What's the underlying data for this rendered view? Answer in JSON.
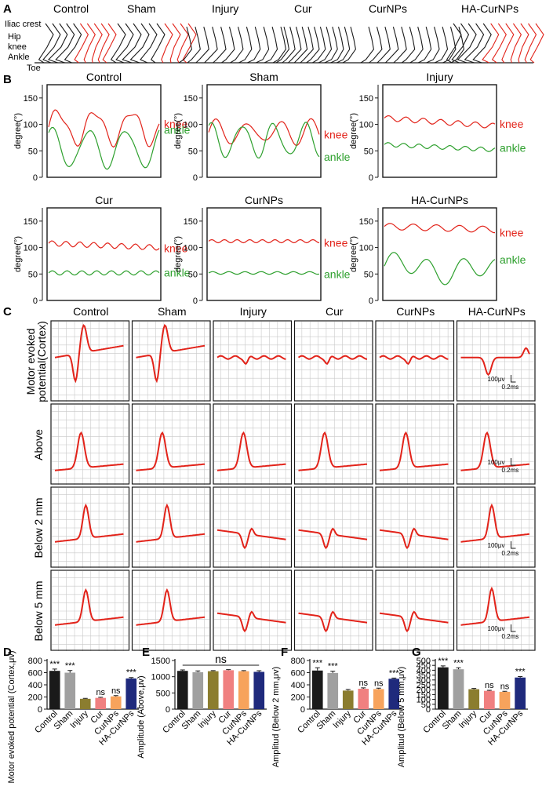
{
  "colors": {
    "red": "#e2231a",
    "green": "#2ea02e",
    "black": "#1a1a1a",
    "gray": "#a0a0a0",
    "olive": "#8b7d2f",
    "pink": "#f08080",
    "orange": "#f7a35c",
    "navy": "#1f2a7c"
  },
  "panel_labels": {
    "a": "A",
    "b": "B",
    "c": "C",
    "d": "D",
    "e": "E",
    "f": "F",
    "g": "G"
  },
  "groups": [
    "Control",
    "Sham",
    "Injury",
    "Cur",
    "CurNPs",
    "HA-CurNPs"
  ],
  "panel_a": {
    "joint_labels": [
      "Iliac crest",
      "Hip",
      "knee",
      "Ankle",
      "Toe"
    ]
  },
  "panel_b": {
    "ylabel": "degree(°)",
    "yticks": [
      "0",
      "50",
      "100",
      "150"
    ],
    "series_names": {
      "knee": "knee",
      "ankle": "ankle"
    }
  },
  "panel_c": {
    "row_labels": [
      "Motor evoked potential(Cortex)",
      "Above",
      "Below 2 mm",
      "Below 5 mm"
    ],
    "scale_v": "100μv",
    "scale_t": "0.2ms"
  },
  "chart_data": [
    {
      "type": "bar",
      "id": "D",
      "title": "",
      "ylabel": "Motor evoked potential (Cortex,μv)",
      "categories": [
        "Control",
        "Sham",
        "Injury",
        "Cur",
        "CurNPs",
        "HA-CurNPs"
      ],
      "values": [
        630,
        600,
        170,
        185,
        210,
        505
      ],
      "errors": [
        30,
        35,
        8,
        10,
        12,
        15
      ],
      "ylim": [
        0,
        800
      ],
      "yticks": [
        "0",
        "200",
        "400",
        "600",
        "800"
      ],
      "annotations": [
        "***",
        "***",
        "",
        "ns",
        "ns",
        "***"
      ]
    },
    {
      "type": "bar",
      "id": "E",
      "title": "",
      "ylabel": "Amplitude (Above,μv)",
      "categories": [
        "Control",
        "Sham",
        "Injury",
        "Cur",
        "CurNPs",
        "HA-CurNPs"
      ],
      "values": [
        1180,
        1140,
        1170,
        1200,
        1170,
        1150
      ],
      "errors": [
        30,
        40,
        20,
        20,
        20,
        35
      ],
      "ylim": [
        0,
        1500
      ],
      "yticks": [
        "0",
        "500",
        "1000",
        "1500"
      ],
      "annotations": [
        "",
        "",
        "",
        "",
        "",
        ""
      ],
      "bracket_label": "ns"
    },
    {
      "type": "bar",
      "id": "F",
      "title": "",
      "ylabel": "Amplitud (Below 2 mm,μv)",
      "categories": [
        "Control",
        "Sham",
        "Injury",
        "Cur",
        "CurNPs",
        "HA-CurNPs"
      ],
      "values": [
        635,
        595,
        305,
        335,
        330,
        500
      ],
      "errors": [
        45,
        30,
        20,
        15,
        15,
        12
      ],
      "ylim": [
        0,
        800
      ],
      "yticks": [
        "0",
        "200",
        "400",
        "600",
        "800"
      ],
      "annotations": [
        "***",
        "***",
        "",
        "ns",
        "ns",
        "***"
      ]
    },
    {
      "type": "bar",
      "id": "G",
      "title": "",
      "ylabel": "Amplitud (Below 5 mm,μv)",
      "categories": [
        "Control",
        "Sham",
        "Injury",
        "Cur",
        "CurNPs",
        "HA-CurNPs"
      ],
      "values": [
        430,
        410,
        205,
        188,
        178,
        325
      ],
      "errors": [
        15,
        15,
        8,
        6,
        5,
        10
      ],
      "ylim": [
        0,
        500
      ],
      "yticks": [
        "0",
        "50",
        "100",
        "150",
        "200",
        "250",
        "300",
        "350",
        "400",
        "450",
        "500"
      ],
      "annotations": [
        "***",
        "***",
        "",
        "ns",
        "ns",
        "***"
      ]
    }
  ]
}
